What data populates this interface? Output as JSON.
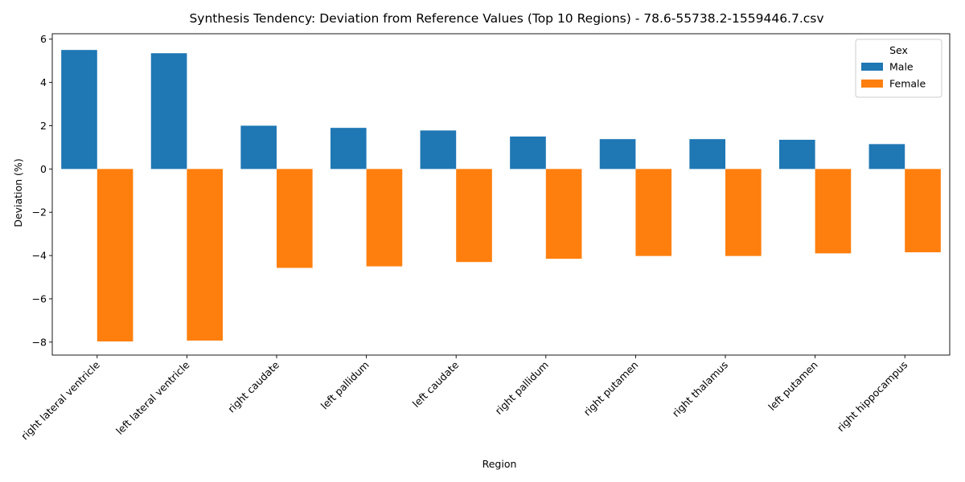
{
  "chart_data": {
    "type": "bar",
    "title": "Synthesis Tendency: Deviation from Reference Values (Top 10 Regions) - 78.6-55738.2-1559446.7.csv",
    "xlabel": "Region",
    "ylabel": "Deviation (%)",
    "categories": [
      "right lateral ventricle",
      "left lateral ventricle",
      "right caudate",
      "left pallidum",
      "left caudate",
      "right pallidum",
      "right putamen",
      "right thalamus",
      "left putamen",
      "right hippocampus"
    ],
    "series": [
      {
        "name": "Male",
        "color": "#1f77b4",
        "values": [
          5.5,
          5.35,
          2.0,
          1.9,
          1.78,
          1.5,
          1.38,
          1.38,
          1.35,
          1.15
        ]
      },
      {
        "name": "Female",
        "color": "#ff7f0e",
        "values": [
          -7.97,
          -7.93,
          -4.57,
          -4.5,
          -4.3,
          -4.15,
          -4.02,
          -4.02,
          -3.9,
          -3.85
        ]
      }
    ],
    "ylim": [
      -8.6,
      6.25
    ],
    "yticks": [
      -8,
      -6,
      -4,
      -2,
      0,
      2,
      4,
      6
    ],
    "grid": false,
    "legend": {
      "title": "Sex",
      "placement": "top-right"
    }
  }
}
